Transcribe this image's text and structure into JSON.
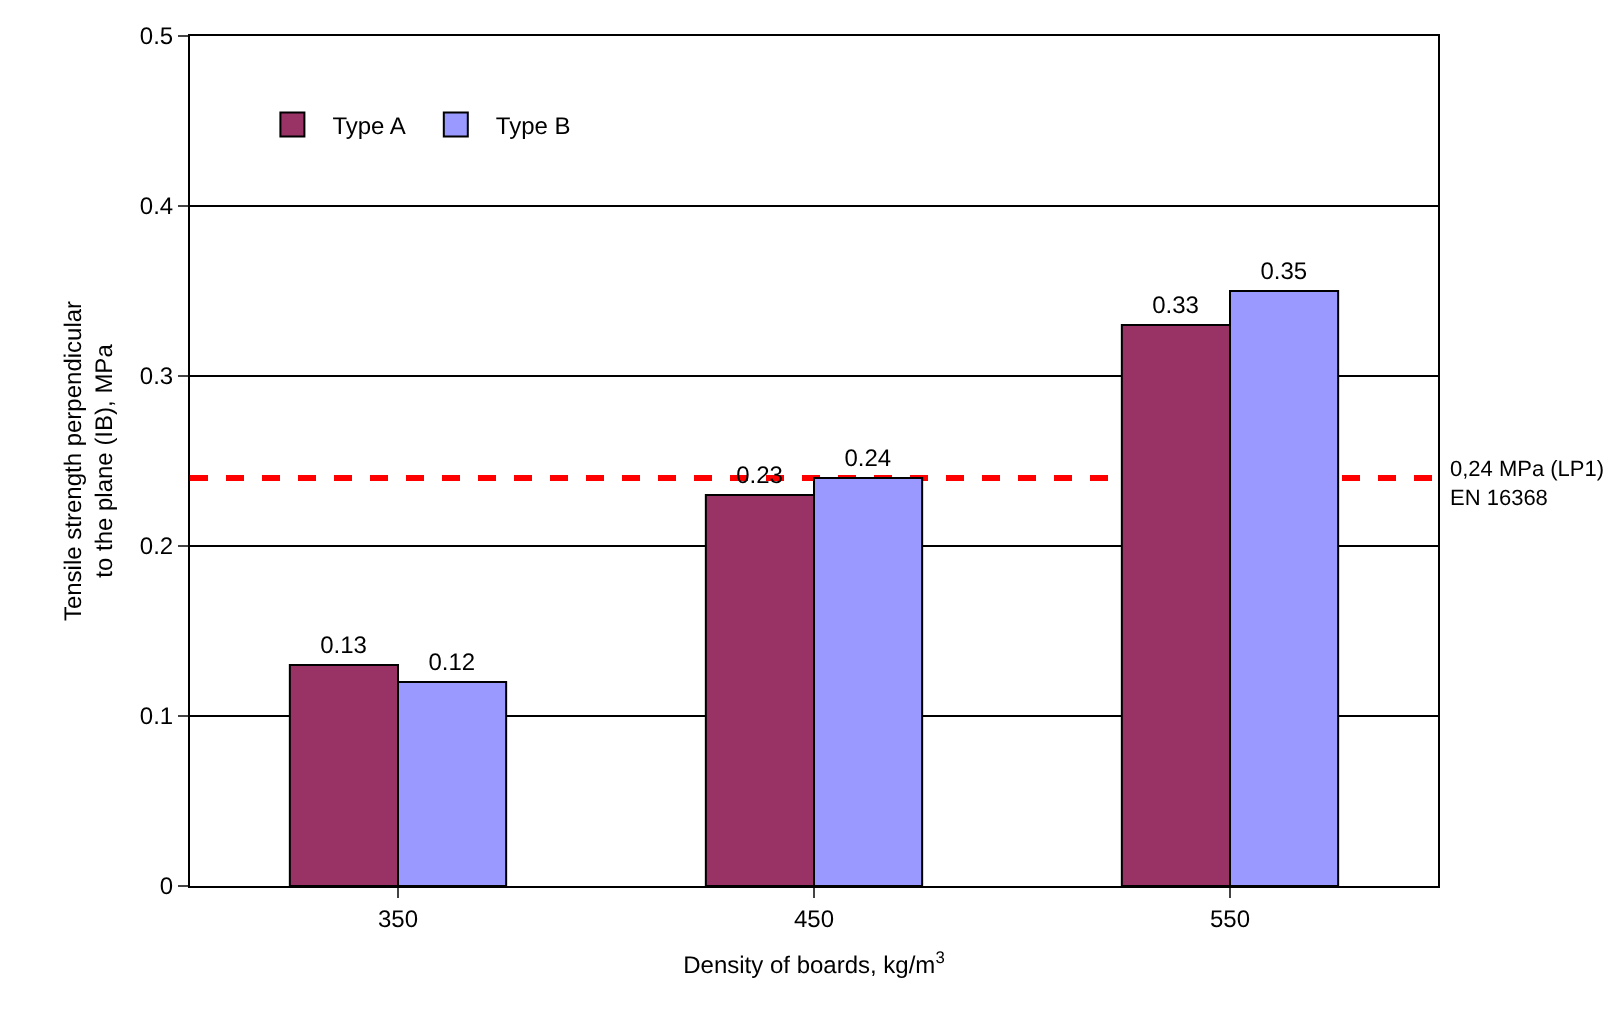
{
  "chart_data": {
    "type": "bar",
    "xlabel": "Density of boards, kg/m$^{3}$",
    "ylabel": "Tensile strength perpendicular to the plane (IB), MPa",
    "categories": [
      "350",
      "450",
      "550"
    ],
    "series": [
      {
        "name": "Type A",
        "color": "#993366",
        "values": [
          0.13,
          0.23,
          0.33
        ]
      },
      {
        "name": "Type B",
        "color": "#9999ff",
        "values": [
          0.12,
          0.24,
          0.35
        ]
      }
    ],
    "ylim": [
      0,
      0.5
    ],
    "yticks": [
      0,
      0.1,
      0.2,
      0.3,
      0.4,
      0.5
    ],
    "grid": "y",
    "legend": "top left",
    "data_labels": true,
    "ref_lines": [
      {
        "axis": "y",
        "value": 0.24,
        "label": "0,24 MPa (LP1)\nEN 16368",
        "color": "#ff0000",
        "line_style": "dashed"
      }
    ]
  }
}
